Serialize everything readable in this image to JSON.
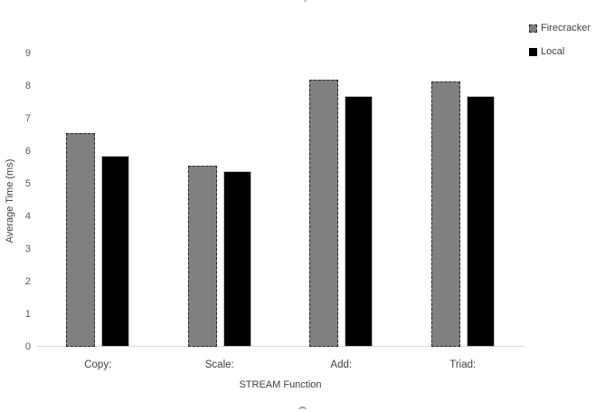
{
  "chart_data": {
    "type": "bar",
    "title": "",
    "xlabel": "STREAM Function",
    "ylabel": "Average Time (ms)",
    "categories": [
      "Copy:",
      "Scale:",
      "Add:",
      "Triad:"
    ],
    "series": [
      {
        "name": "Firecracker",
        "values": [
          6.55,
          5.55,
          8.2,
          8.15
        ],
        "fill": "#808080",
        "border_color": "#262626",
        "border_style": "dashed"
      },
      {
        "name": "Local",
        "values": [
          5.85,
          5.4,
          7.7,
          7.7
        ],
        "fill": "#000000",
        "border_color": "#bfbfbf",
        "border_style": "solid"
      }
    ],
    "y_ticks": [
      0,
      1,
      2,
      3,
      4,
      5,
      6,
      7,
      8,
      9
    ],
    "ylim": [
      0,
      9
    ],
    "grid": false,
    "legend_position": "top-right"
  },
  "colors": {
    "background": "#ffffff",
    "axis_line": "#d9d9d9",
    "tick_text": "#595959",
    "label_text": "#404040"
  }
}
